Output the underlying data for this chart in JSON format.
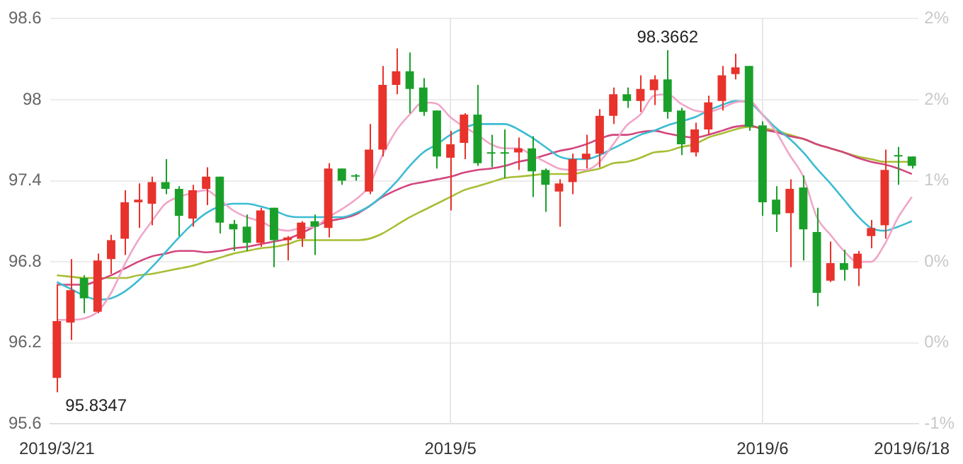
{
  "chart_data": {
    "type": "candlestick",
    "categories": [
      "2019/3/21",
      null,
      null,
      null,
      null,
      null,
      null,
      null,
      null,
      null,
      null,
      null,
      null,
      null,
      null,
      null,
      null,
      null,
      null,
      null,
      null,
      null,
      null,
      null,
      null,
      null,
      null,
      null,
      null,
      "2019/5",
      null,
      null,
      null,
      null,
      null,
      null,
      null,
      null,
      null,
      null,
      null,
      null,
      null,
      null,
      null,
      null,
      null,
      null,
      null,
      null,
      null,
      null,
      "2019/6",
      null,
      null,
      null,
      null,
      null,
      null,
      null,
      null,
      null,
      null,
      "2019/6/18"
    ],
    "ohlc": [
      [
        95.94,
        96.63,
        95.8347,
        96.36
      ],
      [
        96.35,
        96.82,
        96.22,
        96.59
      ],
      [
        96.68,
        96.7,
        96.42,
        96.53
      ],
      [
        96.43,
        96.86,
        96.42,
        96.81
      ],
      [
        96.82,
        97.0,
        96.71,
        96.96
      ],
      [
        96.97,
        97.33,
        96.85,
        97.24
      ],
      [
        97.24,
        97.38,
        97.05,
        97.26
      ],
      [
        97.23,
        97.43,
        97.07,
        97.39
      ],
      [
        97.39,
        97.56,
        97.3,
        97.34
      ],
      [
        97.34,
        97.36,
        96.99,
        97.14
      ],
      [
        97.12,
        97.37,
        97.06,
        97.33
      ],
      [
        97.34,
        97.5,
        97.22,
        97.43
      ],
      [
        97.43,
        97.43,
        97.01,
        97.09
      ],
      [
        97.08,
        97.11,
        96.88,
        97.04
      ],
      [
        97.06,
        97.15,
        96.88,
        96.94
      ],
      [
        96.94,
        97.2,
        96.91,
        97.18
      ],
      [
        97.2,
        97.2,
        96.76,
        96.96
      ],
      [
        96.96,
        96.99,
        96.81,
        96.98
      ],
      [
        96.97,
        97.1,
        96.91,
        97.09
      ],
      [
        97.1,
        97.15,
        96.85,
        97.06
      ],
      [
        97.05,
        97.53,
        96.98,
        97.49
      ],
      [
        97.49,
        97.49,
        97.37,
        97.4
      ],
      [
        97.44,
        97.45,
        97.4,
        97.43
      ],
      [
        97.32,
        97.82,
        97.3,
        97.63
      ],
      [
        97.63,
        98.25,
        97.58,
        98.11
      ],
      [
        98.11,
        98.38,
        98.04,
        98.21
      ],
      [
        98.21,
        98.35,
        97.9,
        98.08
      ],
      [
        98.09,
        98.16,
        97.88,
        97.91
      ],
      [
        97.92,
        97.92,
        97.49,
        97.58
      ],
      [
        97.57,
        97.77,
        97.18,
        97.67
      ],
      [
        97.68,
        97.9,
        97.56,
        97.89
      ],
      [
        97.89,
        98.11,
        97.51,
        97.53
      ],
      [
        97.61,
        97.74,
        97.5,
        97.6
      ],
      [
        97.61,
        97.78,
        97.42,
        97.6
      ],
      [
        97.61,
        97.72,
        97.48,
        97.64
      ],
      [
        97.64,
        97.73,
        97.28,
        97.47
      ],
      [
        97.48,
        97.49,
        97.17,
        97.37
      ],
      [
        97.32,
        97.41,
        97.06,
        97.38
      ],
      [
        97.39,
        97.6,
        97.3,
        97.56
      ],
      [
        97.56,
        97.74,
        97.49,
        97.6
      ],
      [
        97.6,
        97.93,
        97.5,
        97.88
      ],
      [
        97.88,
        98.09,
        97.82,
        98.04
      ],
      [
        98.04,
        98.09,
        97.94,
        97.99
      ],
      [
        97.99,
        98.18,
        97.91,
        98.08
      ],
      [
        98.07,
        98.18,
        97.96,
        98.15
      ],
      [
        98.15,
        98.3662,
        97.86,
        97.91
      ],
      [
        97.92,
        97.94,
        97.59,
        97.67
      ],
      [
        97.61,
        97.83,
        97.58,
        97.78
      ],
      [
        97.78,
        98.03,
        97.74,
        97.98
      ],
      [
        97.99,
        98.25,
        97.92,
        98.18
      ],
      [
        98.19,
        98.34,
        98.15,
        98.24
      ],
      [
        98.25,
        98.25,
        97.77,
        97.8
      ],
      [
        97.81,
        97.84,
        97.14,
        97.24
      ],
      [
        97.26,
        97.36,
        97.02,
        97.15
      ],
      [
        97.16,
        97.41,
        96.76,
        97.34
      ],
      [
        97.35,
        97.44,
        96.81,
        97.04
      ],
      [
        97.02,
        97.2,
        96.47,
        96.57
      ],
      [
        96.66,
        96.95,
        96.65,
        96.79
      ],
      [
        96.79,
        96.89,
        96.66,
        96.74
      ],
      [
        96.75,
        96.88,
        96.62,
        96.86
      ],
      [
        96.99,
        97.11,
        96.9,
        97.05
      ],
      [
        97.07,
        97.63,
        96.97,
        97.48
      ],
      [
        97.59,
        97.65,
        97.37,
        97.58
      ],
      [
        97.58,
        97.58,
        97.49,
        97.51
      ]
    ],
    "colors": [
      "#e8322c",
      "#e8322c",
      "#1aa02a",
      "#e8322c",
      "#e8322c",
      "#e8322c",
      "#e8322c",
      "#e8322c",
      "#1aa02a",
      "#1aa02a",
      "#e8322c",
      "#e8322c",
      "#1aa02a",
      "#1aa02a",
      "#1aa02a",
      "#e8322c",
      "#1aa02a",
      "#e8322c",
      "#e8322c",
      "#1aa02a",
      "#e8322c",
      "#1aa02a",
      "#1aa02a",
      "#e8322c",
      "#e8322c",
      "#e8322c",
      "#1aa02a",
      "#1aa02a",
      "#1aa02a",
      "#e8322c",
      "#e8322c",
      "#1aa02a",
      "#1aa02a",
      "#1aa02a",
      "#e8322c",
      "#1aa02a",
      "#1aa02a",
      "#e8322c",
      "#e8322c",
      "#e8322c",
      "#e8322c",
      "#e8322c",
      "#1aa02a",
      "#e8322c",
      "#e8322c",
      "#1aa02a",
      "#1aa02a",
      "#e8322c",
      "#e8322c",
      "#e8322c",
      "#e8322c",
      "#1aa02a",
      "#1aa02a",
      "#1aa02a",
      "#e8322c",
      "#1aa02a",
      "#1aa02a",
      "#e8322c",
      "#1aa02a",
      "#e8322c",
      "#e8322c",
      "#e8322c",
      "#1aa02a",
      "#1aa02a"
    ],
    "series": [
      {
        "type": "line",
        "color": "#f0a6c8",
        "values": [
          96.37,
          96.37,
          96.38,
          96.43,
          96.57,
          96.78,
          96.96,
          97.1,
          97.23,
          97.28,
          97.31,
          97.33,
          97.26,
          97.18,
          97.13,
          97.1,
          97.05,
          97.03,
          97.05,
          97.06,
          97.13,
          97.19,
          97.26,
          97.36,
          97.59,
          97.77,
          97.89,
          97.98,
          97.97,
          97.87,
          97.8,
          97.74,
          97.67,
          97.64,
          97.64,
          97.59,
          97.54,
          97.49,
          97.48,
          97.48,
          97.54,
          97.67,
          97.81,
          97.89,
          98.03,
          98.04,
          97.97,
          97.92,
          97.91,
          97.94,
          97.98,
          97.99,
          97.89,
          97.76,
          97.59,
          97.43,
          97.13,
          97.0,
          96.88,
          96.8,
          96.8,
          96.93,
          97.13,
          97.28
        ]
      },
      {
        "type": "line",
        "color": "#3cbcd2",
        "values": [
          96.65,
          96.6,
          96.55,
          96.52,
          96.53,
          96.58,
          96.66,
          96.76,
          96.87,
          96.98,
          97.08,
          97.16,
          97.21,
          97.23,
          97.23,
          97.21,
          97.18,
          97.14,
          97.13,
          97.13,
          97.13,
          97.13,
          97.16,
          97.21,
          97.29,
          97.39,
          97.51,
          97.61,
          97.67,
          97.74,
          97.79,
          97.82,
          97.82,
          97.82,
          97.78,
          97.72,
          97.65,
          97.58,
          97.56,
          97.56,
          97.59,
          97.64,
          97.69,
          97.74,
          97.77,
          97.81,
          97.84,
          97.87,
          97.92,
          97.96,
          97.99,
          97.98,
          97.89,
          97.79,
          97.71,
          97.61,
          97.49,
          97.38,
          97.26,
          97.14,
          97.05,
          97.03,
          97.06,
          97.1
        ]
      },
      {
        "type": "line",
        "color": "#d2467e",
        "values": [
          96.63,
          96.63,
          96.63,
          96.66,
          96.7,
          96.75,
          96.8,
          96.84,
          96.86,
          96.88,
          96.88,
          96.87,
          96.88,
          96.9,
          96.91,
          96.93,
          96.95,
          96.97,
          97.01,
          97.06,
          97.1,
          97.12,
          97.15,
          97.21,
          97.28,
          97.33,
          97.37,
          97.39,
          97.41,
          97.43,
          97.46,
          97.48,
          97.49,
          97.51,
          97.54,
          97.56,
          97.59,
          97.62,
          97.64,
          97.67,
          97.71,
          97.74,
          97.74,
          97.76,
          97.77,
          97.75,
          97.73,
          97.72,
          97.74,
          97.77,
          97.8,
          97.81,
          97.78,
          97.76,
          97.73,
          97.71,
          97.67,
          97.64,
          97.61,
          97.57,
          97.54,
          97.52,
          97.49,
          97.45
        ]
      },
      {
        "type": "line",
        "color": "#a8be34",
        "values": [
          96.7,
          96.69,
          96.68,
          96.68,
          96.68,
          96.68,
          96.7,
          96.71,
          96.73,
          96.75,
          96.77,
          96.8,
          96.83,
          96.86,
          96.88,
          96.9,
          96.91,
          96.93,
          96.96,
          96.96,
          96.96,
          96.96,
          96.96,
          96.97,
          97.01,
          97.07,
          97.13,
          97.18,
          97.23,
          97.28,
          97.33,
          97.36,
          97.39,
          97.42,
          97.43,
          97.44,
          97.45,
          97.45,
          97.45,
          97.47,
          97.49,
          97.53,
          97.54,
          97.57,
          97.61,
          97.62,
          97.65,
          97.67,
          97.72,
          97.75,
          97.78,
          97.8,
          97.79,
          97.77,
          97.74,
          97.71,
          97.67,
          97.64,
          97.61,
          97.58,
          97.56,
          97.54,
          97.54,
          97.54
        ]
      }
    ],
    "ylim": [
      95.6,
      98.6
    ],
    "yticks": [
      95.6,
      96.2,
      96.8,
      97.4,
      98,
      98.6
    ],
    "y2lim": [
      -0.933,
      2.176
    ],
    "y2ticks": [
      {
        "value": -0.933,
        "label": "-1%"
      },
      {
        "value": -0.311,
        "label": "0%"
      },
      {
        "value": 0.311,
        "label": "0%"
      },
      {
        "value": 0.933,
        "label": "1%"
      },
      {
        "value": 1.554,
        "label": "2%"
      },
      {
        "value": 2.176,
        "label": "2%"
      }
    ],
    "grid": "y",
    "ref_lines": [
      {
        "axis": "x",
        "value": "2019/5",
        "color": "#e6e6e6"
      },
      {
        "axis": "x",
        "value": "2019/6",
        "color": "#e6e6e6"
      }
    ],
    "annotations": [
      {
        "text": "95.8347",
        "x": "2019/3/21",
        "y": 95.8347
      },
      {
        "text": "98.3662",
        "y": 98.3662
      }
    ]
  }
}
